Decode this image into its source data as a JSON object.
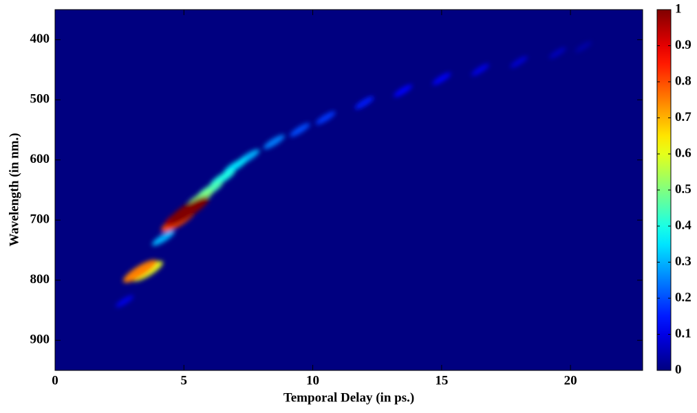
{
  "chart_data": {
    "type": "heatmap",
    "xlabel": "Temporal Delay (in ps.)",
    "ylabel": "Wavelength (in nm.)",
    "x": [
      2.7,
      20.5,
      19.5,
      18,
      16.5,
      15,
      13.5,
      12,
      10.5,
      9.5,
      8.5,
      4.2,
      7.5,
      7.0,
      6.5,
      6.0,
      5.6,
      3.6,
      3.3,
      4.8,
      5.0,
      5.2
    ],
    "y": [
      835,
      412,
      422,
      437,
      450,
      465,
      485,
      505,
      530,
      550,
      570,
      730,
      595,
      610,
      630,
      650,
      665,
      785,
      785,
      700,
      690,
      683
    ],
    "values": [
      0.1,
      0.04,
      0.06,
      0.08,
      0.1,
      0.12,
      0.13,
      0.15,
      0.18,
      0.2,
      0.25,
      0.3,
      0.3,
      0.35,
      0.4,
      0.45,
      0.5,
      0.6,
      0.75,
      0.8,
      0.95,
      1.0
    ],
    "xlim": [
      0,
      22.8
    ],
    "xticks": [
      0,
      5,
      10,
      15,
      20
    ],
    "ylim": [
      950,
      350
    ],
    "yticks": [
      400,
      500,
      600,
      700,
      800,
      900
    ],
    "clim": [
      0,
      1
    ],
    "cticks": [
      0,
      0.1,
      0.2,
      0.3,
      0.4,
      0.5,
      0.6,
      0.7,
      0.8,
      0.9,
      1
    ],
    "colormap": "jet"
  }
}
